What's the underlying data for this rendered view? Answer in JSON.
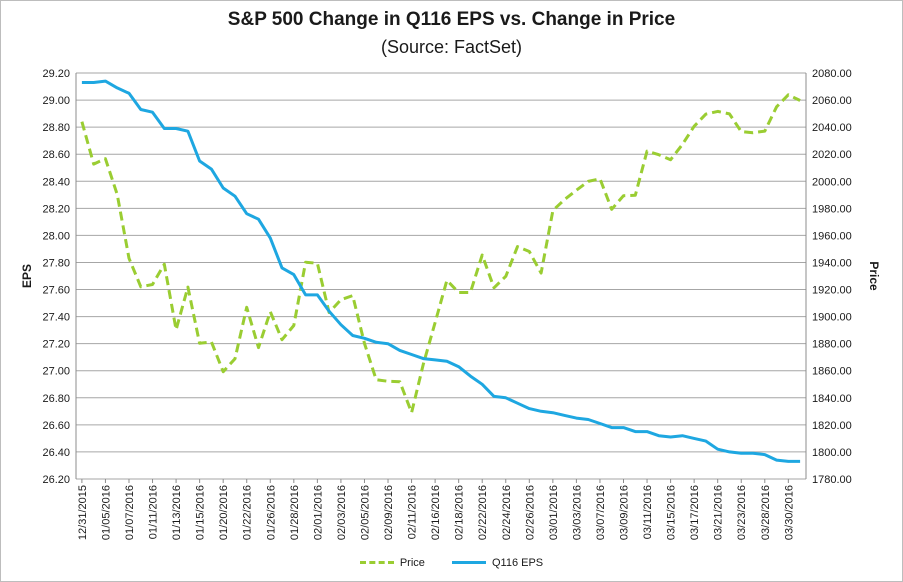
{
  "colors": {
    "price": "#9acd32",
    "eps": "#1ea7e1",
    "grid": "#a6a6a6",
    "axis": "#8c8c8c"
  },
  "chart_data": {
    "type": "line",
    "title": "S&P 500 Change in Q116 EPS vs. Change in Price",
    "subtitle": "(Source: FactSet)",
    "ylabel_left": "EPS",
    "ylabel_right": "Price",
    "ylim_left": [
      26.2,
      29.2
    ],
    "ylim_right": [
      1780,
      2080
    ],
    "yticks_left": [
      "26.20",
      "26.40",
      "26.60",
      "26.80",
      "27.00",
      "27.20",
      "27.40",
      "27.60",
      "27.80",
      "28.00",
      "28.20",
      "28.40",
      "28.60",
      "28.80",
      "29.00",
      "29.20"
    ],
    "yticks_right": [
      "1780.00",
      "1800.00",
      "1820.00",
      "1840.00",
      "1860.00",
      "1880.00",
      "1900.00",
      "1920.00",
      "1940.00",
      "1960.00",
      "1980.00",
      "2000.00",
      "2020.00",
      "2040.00",
      "2060.00",
      "2080.00"
    ],
    "x": [
      "12/31/2015",
      "01/04/2016",
      "01/05/2016",
      "01/06/2016",
      "01/07/2016",
      "01/08/2016",
      "01/11/2016",
      "01/12/2016",
      "01/13/2016",
      "01/14/2016",
      "01/15/2016",
      "01/19/2016",
      "01/20/2016",
      "01/21/2016",
      "01/22/2016",
      "01/25/2016",
      "01/26/2016",
      "01/27/2016",
      "01/28/2016",
      "01/29/2016",
      "02/01/2016",
      "02/02/2016",
      "02/03/2016",
      "02/04/2016",
      "02/05/2016",
      "02/08/2016",
      "02/09/2016",
      "02/10/2016",
      "02/11/2016",
      "02/12/2016",
      "02/16/2016",
      "02/17/2016",
      "02/18/2016",
      "02/19/2016",
      "02/22/2016",
      "02/23/2016",
      "02/24/2016",
      "02/25/2016",
      "02/26/2016",
      "02/29/2016",
      "03/01/2016",
      "03/02/2016",
      "03/03/2016",
      "03/04/2016",
      "03/07/2016",
      "03/08/2016",
      "03/09/2016",
      "03/10/2016",
      "03/11/2016",
      "03/14/2016",
      "03/15/2016",
      "03/16/2016",
      "03/17/2016",
      "03/18/2016",
      "03/21/2016",
      "03/22/2016",
      "03/23/2016",
      "03/24/2016",
      "03/28/2016",
      "03/29/2016",
      "03/30/2016",
      "03/31/2016"
    ],
    "xtick_labels": [
      "12/31/2015",
      "01/05/2016",
      "01/07/2016",
      "01/11/2016",
      "01/13/2016",
      "01/15/2016",
      "01/20/2016",
      "01/22/2016",
      "01/26/2016",
      "01/28/2016",
      "02/01/2016",
      "02/03/2016",
      "02/05/2016",
      "02/09/2016",
      "02/11/2016",
      "02/16/2016",
      "02/18/2016",
      "02/22/2016",
      "02/24/2016",
      "02/26/2016",
      "03/01/2016",
      "03/03/2016",
      "03/07/2016",
      "03/09/2016",
      "03/11/2016",
      "03/15/2016",
      "03/17/2016",
      "03/21/2016",
      "03/23/2016",
      "03/28/2016",
      "03/30/2016"
    ],
    "series": [
      {
        "name": "Price",
        "axis": "right",
        "style": "dashed",
        "values": [
          2044.0,
          2012.7,
          2016.7,
          1990.3,
          1943.1,
          1922.0,
          1923.7,
          1938.7,
          1890.3,
          1921.8,
          1880.3,
          1881.3,
          1859.3,
          1868.9,
          1906.9,
          1877.1,
          1903.6,
          1882.9,
          1893.4,
          1940.2,
          1939.4,
          1903.0,
          1912.5,
          1915.5,
          1880.1,
          1853.4,
          1852.2,
          1851.9,
          1829.1,
          1864.8,
          1895.6,
          1926.8,
          1917.8,
          1917.8,
          1945.5,
          1921.3,
          1929.8,
          1951.7,
          1948.1,
          1932.2,
          1978.4,
          1986.5,
          1993.4,
          1999.9,
          2001.8,
          1979.3,
          1989.3,
          1989.6,
          2022.2,
          2019.6,
          2015.9,
          2027.2,
          2040.6,
          2049.6,
          2051.6,
          2049.8,
          2036.7,
          2035.9,
          2037.1,
          2055.0,
          2063.9,
          2059.7
        ]
      },
      {
        "name": "Q116 EPS",
        "axis": "left",
        "style": "solid",
        "values": [
          29.13,
          29.13,
          29.14,
          29.09,
          29.05,
          28.93,
          28.91,
          28.79,
          28.79,
          28.77,
          28.55,
          28.49,
          28.35,
          28.29,
          28.16,
          28.12,
          27.98,
          27.76,
          27.71,
          27.56,
          27.56,
          27.44,
          27.34,
          27.26,
          27.24,
          27.21,
          27.2,
          27.15,
          27.12,
          27.09,
          27.08,
          27.07,
          27.03,
          26.96,
          26.9,
          26.81,
          26.8,
          26.76,
          26.72,
          26.7,
          26.69,
          26.67,
          26.65,
          26.64,
          26.61,
          26.58,
          26.58,
          26.55,
          26.55,
          26.52,
          26.51,
          26.52,
          26.5,
          26.48,
          26.42,
          26.4,
          26.39,
          26.39,
          26.38,
          26.34,
          26.33,
          26.33
        ]
      }
    ],
    "grid": true,
    "legend_position": "bottom"
  }
}
